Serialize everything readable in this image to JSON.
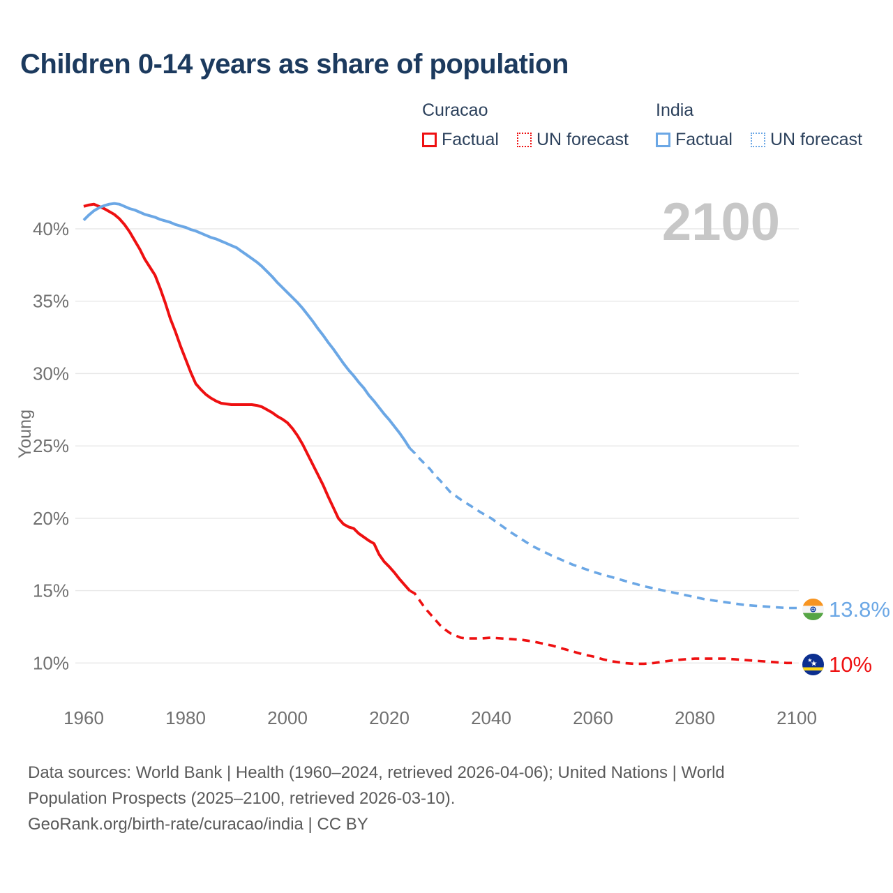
{
  "title": "Children 0-14 years as share of population",
  "watermark_year": "2100",
  "legend": {
    "curacao": {
      "country": "Curacao",
      "factual_label": "Factual",
      "forecast_label": "UN forecast"
    },
    "india": {
      "country": "India",
      "factual_label": "Factual",
      "forecast_label": "UN forecast"
    }
  },
  "end_labels": {
    "india": {
      "country": "India",
      "value": "13.8%"
    },
    "curacao": {
      "country": "Curacao",
      "value": "10%"
    }
  },
  "footer": {
    "line1": "Data sources: World Bank | Health (1960–2024, retrieved 2026-04-06); United Nations | World",
    "line2": "Population Prospects (2025–2100, retrieved 2026-03-10).",
    "line3": "GeoRank.org/birth-rate/curacao/india | CC BY"
  },
  "chart_data": {
    "type": "line",
    "title": "Children 0-14 years as share of population",
    "ylabel": "Young",
    "unit": "%",
    "xlim": [
      1958,
      2103
    ],
    "ylim": [
      8.5,
      42.5
    ],
    "x_ticks": [
      1960,
      1980,
      2000,
      2020,
      2040,
      2060,
      2080,
      2100
    ],
    "y_ticks": [
      10,
      15,
      20,
      25,
      30,
      35,
      40
    ],
    "grid": "horizontal-only",
    "legend_position": "top-right",
    "colors": {
      "curacao": "#ee1011",
      "india": "#6ba7e5",
      "gridline": "#e8e8e8",
      "axis_text": "#707070",
      "title_text": "#1c3a5e",
      "watermark": "#c7c7c7"
    },
    "series": [
      {
        "name": "Curacao Factual",
        "color": "#ee1011",
        "style": "solid",
        "points": [
          [
            1960,
            41.55
          ],
          [
            1961,
            41.65
          ],
          [
            1962,
            41.7
          ],
          [
            1963,
            41.55
          ],
          [
            1964,
            41.4
          ],
          [
            1965,
            41.2
          ],
          [
            1966,
            41.0
          ],
          [
            1967,
            40.7
          ],
          [
            1968,
            40.3
          ],
          [
            1969,
            39.8
          ],
          [
            1970,
            39.2
          ],
          [
            1971,
            38.6
          ],
          [
            1972,
            37.9
          ],
          [
            1973,
            37.35
          ],
          [
            1974,
            36.8
          ],
          [
            1975,
            35.9
          ],
          [
            1976,
            34.9
          ],
          [
            1977,
            33.8
          ],
          [
            1978,
            32.9
          ],
          [
            1979,
            31.9
          ],
          [
            1980,
            31.0
          ],
          [
            1981,
            30.1
          ],
          [
            1982,
            29.3
          ],
          [
            1983,
            28.9
          ],
          [
            1984,
            28.55
          ],
          [
            1985,
            28.3
          ],
          [
            1986,
            28.1
          ],
          [
            1987,
            27.95
          ],
          [
            1988,
            27.9
          ],
          [
            1989,
            27.85
          ],
          [
            1990,
            27.85
          ],
          [
            1991,
            27.85
          ],
          [
            1992,
            27.85
          ],
          [
            1993,
            27.85
          ],
          [
            1994,
            27.8
          ],
          [
            1995,
            27.7
          ],
          [
            1996,
            27.5
          ],
          [
            1997,
            27.3
          ],
          [
            1998,
            27.05
          ],
          [
            1999,
            26.85
          ],
          [
            2000,
            26.6
          ],
          [
            2001,
            26.2
          ],
          [
            2002,
            25.7
          ],
          [
            2003,
            25.1
          ],
          [
            2004,
            24.4
          ],
          [
            2005,
            23.7
          ],
          [
            2006,
            23.0
          ],
          [
            2007,
            22.3
          ],
          [
            2008,
            21.5
          ],
          [
            2009,
            20.75
          ],
          [
            2010,
            20.0
          ],
          [
            2011,
            19.6
          ],
          [
            2012,
            19.4
          ],
          [
            2013,
            19.3
          ],
          [
            2014,
            18.95
          ],
          [
            2015,
            18.7
          ],
          [
            2016,
            18.45
          ],
          [
            2017,
            18.25
          ],
          [
            2018,
            17.5
          ],
          [
            2019,
            17.0
          ],
          [
            2020,
            16.65
          ],
          [
            2021,
            16.25
          ],
          [
            2022,
            15.8
          ],
          [
            2023,
            15.4
          ],
          [
            2024,
            15.0
          ]
        ]
      },
      {
        "name": "Curacao UN forecast",
        "color": "#ee1011",
        "style": "dashed",
        "points": [
          [
            2024,
            15.0
          ],
          [
            2025,
            14.8
          ],
          [
            2026,
            14.3
          ],
          [
            2027,
            13.8
          ],
          [
            2028,
            13.4
          ],
          [
            2029,
            13.0
          ],
          [
            2030,
            12.6
          ],
          [
            2031,
            12.3
          ],
          [
            2032,
            12.05
          ],
          [
            2033,
            11.9
          ],
          [
            2034,
            11.75
          ],
          [
            2035,
            11.7
          ],
          [
            2036,
            11.7
          ],
          [
            2038,
            11.7
          ],
          [
            2040,
            11.75
          ],
          [
            2042,
            11.7
          ],
          [
            2044,
            11.65
          ],
          [
            2046,
            11.6
          ],
          [
            2048,
            11.5
          ],
          [
            2050,
            11.35
          ],
          [
            2052,
            11.2
          ],
          [
            2054,
            11.0
          ],
          [
            2056,
            10.8
          ],
          [
            2058,
            10.6
          ],
          [
            2060,
            10.45
          ],
          [
            2062,
            10.25
          ],
          [
            2064,
            10.1
          ],
          [
            2066,
            10.0
          ],
          [
            2068,
            9.95
          ],
          [
            2070,
            9.95
          ],
          [
            2072,
            10.0
          ],
          [
            2074,
            10.1
          ],
          [
            2076,
            10.2
          ],
          [
            2078,
            10.25
          ],
          [
            2080,
            10.3
          ],
          [
            2084,
            10.3
          ],
          [
            2086,
            10.3
          ],
          [
            2088,
            10.25
          ],
          [
            2090,
            10.2
          ],
          [
            2092,
            10.15
          ],
          [
            2094,
            10.1
          ],
          [
            2096,
            10.05
          ],
          [
            2098,
            10.0
          ],
          [
            2100,
            10.0
          ]
        ]
      },
      {
        "name": "India Factual",
        "color": "#6ba7e5",
        "style": "solid",
        "points": [
          [
            1960,
            40.6
          ],
          [
            1961,
            40.95
          ],
          [
            1962,
            41.25
          ],
          [
            1963,
            41.45
          ],
          [
            1964,
            41.6
          ],
          [
            1965,
            41.7
          ],
          [
            1966,
            41.75
          ],
          [
            1967,
            41.7
          ],
          [
            1968,
            41.55
          ],
          [
            1969,
            41.4
          ],
          [
            1970,
            41.3
          ],
          [
            1971,
            41.15
          ],
          [
            1972,
            41.0
          ],
          [
            1973,
            40.9
          ],
          [
            1974,
            40.8
          ],
          [
            1975,
            40.65
          ],
          [
            1976,
            40.55
          ],
          [
            1977,
            40.45
          ],
          [
            1978,
            40.3
          ],
          [
            1979,
            40.2
          ],
          [
            1980,
            40.1
          ],
          [
            1981,
            39.95
          ],
          [
            1982,
            39.85
          ],
          [
            1983,
            39.7
          ],
          [
            1984,
            39.55
          ],
          [
            1985,
            39.4
          ],
          [
            1986,
            39.3
          ],
          [
            1987,
            39.15
          ],
          [
            1988,
            39.0
          ],
          [
            1989,
            38.85
          ],
          [
            1990,
            38.7
          ],
          [
            1991,
            38.45
          ],
          [
            1992,
            38.2
          ],
          [
            1993,
            37.95
          ],
          [
            1994,
            37.7
          ],
          [
            1995,
            37.4
          ],
          [
            1996,
            37.05
          ],
          [
            1997,
            36.7
          ],
          [
            1998,
            36.3
          ],
          [
            1999,
            35.95
          ],
          [
            2000,
            35.6
          ],
          [
            2001,
            35.25
          ],
          [
            2002,
            34.9
          ],
          [
            2003,
            34.5
          ],
          [
            2004,
            34.05
          ],
          [
            2005,
            33.6
          ],
          [
            2006,
            33.1
          ],
          [
            2007,
            32.65
          ],
          [
            2008,
            32.15
          ],
          [
            2009,
            31.7
          ],
          [
            2010,
            31.2
          ],
          [
            2011,
            30.7
          ],
          [
            2012,
            30.25
          ],
          [
            2013,
            29.85
          ],
          [
            2014,
            29.4
          ],
          [
            2015,
            29.0
          ],
          [
            2016,
            28.5
          ],
          [
            2017,
            28.1
          ],
          [
            2018,
            27.65
          ],
          [
            2019,
            27.2
          ],
          [
            2020,
            26.8
          ],
          [
            2021,
            26.35
          ],
          [
            2022,
            25.9
          ],
          [
            2023,
            25.4
          ],
          [
            2024,
            24.85
          ]
        ]
      },
      {
        "name": "India UN forecast",
        "color": "#6ba7e5",
        "style": "dashed",
        "points": [
          [
            2024,
            24.85
          ],
          [
            2025,
            24.5
          ],
          [
            2026,
            24.1
          ],
          [
            2027,
            23.75
          ],
          [
            2028,
            23.4
          ],
          [
            2029,
            22.95
          ],
          [
            2030,
            22.6
          ],
          [
            2031,
            22.2
          ],
          [
            2032,
            21.8
          ],
          [
            2034,
            21.3
          ],
          [
            2036,
            20.85
          ],
          [
            2038,
            20.4
          ],
          [
            2040,
            20.0
          ],
          [
            2042,
            19.5
          ],
          [
            2044,
            19.0
          ],
          [
            2046,
            18.55
          ],
          [
            2048,
            18.1
          ],
          [
            2050,
            17.75
          ],
          [
            2052,
            17.4
          ],
          [
            2054,
            17.1
          ],
          [
            2056,
            16.8
          ],
          [
            2058,
            16.55
          ],
          [
            2060,
            16.3
          ],
          [
            2062,
            16.1
          ],
          [
            2064,
            15.9
          ],
          [
            2066,
            15.7
          ],
          [
            2068,
            15.5
          ],
          [
            2070,
            15.3
          ],
          [
            2072,
            15.15
          ],
          [
            2074,
            15.0
          ],
          [
            2076,
            14.85
          ],
          [
            2078,
            14.7
          ],
          [
            2080,
            14.55
          ],
          [
            2082,
            14.4
          ],
          [
            2084,
            14.3
          ],
          [
            2086,
            14.2
          ],
          [
            2088,
            14.1
          ],
          [
            2090,
            14.0
          ],
          [
            2092,
            13.95
          ],
          [
            2094,
            13.9
          ],
          [
            2096,
            13.85
          ],
          [
            2098,
            13.8
          ],
          [
            2100,
            13.8
          ]
        ]
      }
    ]
  }
}
